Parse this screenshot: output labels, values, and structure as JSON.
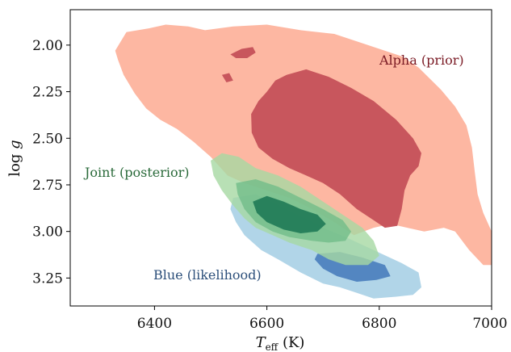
{
  "chart_data": {
    "type": "contour",
    "xlabel_main": "T",
    "xlabel_sub": "eff",
    "xlabel_unit": " (K)",
    "ylabel_main": "log ",
    "ylabel_italic": "g",
    "xlim": [
      6250,
      7000
    ],
    "ylim": [
      3.4,
      1.81
    ],
    "x_ticks": [
      6400,
      6600,
      6800,
      7000
    ],
    "y_ticks": [
      2.0,
      2.25,
      2.5,
      2.75,
      3.0,
      3.25
    ],
    "x_tick_labels": [
      "6400",
      "6600",
      "6800",
      "7000"
    ],
    "y_tick_labels": [
      "2.00",
      "2.25",
      "2.50",
      "2.75",
      "3.00",
      "3.25"
    ],
    "grid": false,
    "annotations": [
      {
        "key": "alpha",
        "text": "Alpha (prior)",
        "color": "#7a1a24"
      },
      {
        "key": "joint",
        "text": "Joint (posterior)",
        "color": "#2a6a3a"
      },
      {
        "key": "blue",
        "text": "Blue (likelihood)",
        "color": "#2c4f7a"
      }
    ],
    "series": [
      {
        "key": "alpha",
        "levels": [
          {
            "level": "outer",
            "color": "#fdb7a2",
            "opacity": 1.0,
            "polygons": [
              [
                [
                  6330,
                  2.03
                ],
                [
                  6350,
                  1.93
                ],
                [
                  6390,
                  1.91
                ],
                [
                  6420,
                  1.89
                ],
                [
                  6460,
                  1.9
                ],
                [
                  6490,
                  1.92
                ],
                [
                  6540,
                  1.9
                ],
                [
                  6600,
                  1.89
                ],
                [
                  6660,
                  1.92
                ],
                [
                  6720,
                  1.94
                ],
                [
                  6760,
                  1.98
                ],
                [
                  6800,
                  2.02
                ],
                [
                  6840,
                  2.06
                ],
                [
                  6870,
                  2.12
                ],
                [
                  6890,
                  2.18
                ],
                [
                  6910,
                  2.24
                ],
                [
                  6935,
                  2.33
                ],
                [
                  6955,
                  2.43
                ],
                [
                  6965,
                  2.55
                ],
                [
                  6970,
                  2.68
                ],
                [
                  6975,
                  2.8
                ],
                [
                  6985,
                  2.9
                ],
                [
                  7000,
                  3.0
                ],
                [
                  7000,
                  3.18
                ],
                [
                  6985,
                  3.18
                ],
                [
                  6960,
                  3.1
                ],
                [
                  6935,
                  3.0
                ],
                [
                  6915,
                  2.98
                ],
                [
                  6880,
                  3.0
                ],
                [
                  6850,
                  2.98
                ],
                [
                  6820,
                  2.96
                ],
                [
                  6790,
                  2.98
                ],
                [
                  6755,
                  3.02
                ],
                [
                  6720,
                  2.95
                ],
                [
                  6680,
                  2.88
                ],
                [
                  6640,
                  2.82
                ],
                [
                  6600,
                  2.78
                ],
                [
                  6560,
                  2.74
                ],
                [
                  6530,
                  2.7
                ],
                [
                  6500,
                  2.6
                ],
                [
                  6470,
                  2.52
                ],
                [
                  6440,
                  2.45
                ],
                [
                  6410,
                  2.4
                ],
                [
                  6385,
                  2.34
                ],
                [
                  6365,
                  2.26
                ],
                [
                  6345,
                  2.16
                ],
                [
                  6335,
                  2.08
                ]
              ]
            ]
          },
          {
            "level": "inner",
            "color": "#c8565d",
            "opacity": 1.0,
            "polygons": [
              [
                [
                  6635,
                  2.16
                ],
                [
                  6670,
                  2.13
                ],
                [
                  6710,
                  2.17
                ],
                [
                  6750,
                  2.23
                ],
                [
                  6790,
                  2.3
                ],
                [
                  6830,
                  2.4
                ],
                [
                  6860,
                  2.5
                ],
                [
                  6875,
                  2.58
                ],
                [
                  6870,
                  2.65
                ],
                [
                  6855,
                  2.7
                ],
                [
                  6845,
                  2.78
                ],
                [
                  6840,
                  2.88
                ],
                [
                  6832,
                  2.97
                ],
                [
                  6810,
                  2.98
                ],
                [
                  6790,
                  2.94
                ],
                [
                  6760,
                  2.88
                ],
                [
                  6730,
                  2.8
                ],
                [
                  6700,
                  2.74
                ],
                [
                  6670,
                  2.7
                ],
                [
                  6640,
                  2.66
                ],
                [
                  6610,
                  2.61
                ],
                [
                  6585,
                  2.55
                ],
                [
                  6573,
                  2.47
                ],
                [
                  6572,
                  2.37
                ],
                [
                  6585,
                  2.3
                ],
                [
                  6600,
                  2.25
                ],
                [
                  6615,
                  2.19
                ]
              ],
              [
                [
                  6535,
                  2.05
                ],
                [
                  6555,
                  2.02
                ],
                [
                  6575,
                  2.01
                ],
                [
                  6580,
                  2.04
                ],
                [
                  6565,
                  2.07
                ],
                [
                  6545,
                  2.07
                ]
              ],
              [
                [
                  6520,
                  2.16
                ],
                [
                  6533,
                  2.15
                ],
                [
                  6540,
                  2.19
                ],
                [
                  6528,
                  2.2
                ]
              ]
            ]
          }
        ]
      },
      {
        "key": "blue",
        "levels": [
          {
            "level": "outer",
            "color": "#a9d0e6",
            "opacity": 0.9,
            "polygons": [
              [
                [
                  6540,
                  2.82
                ],
                [
                  6580,
                  2.8
                ],
                [
                  6620,
                  2.86
                ],
                [
                  6660,
                  2.92
                ],
                [
                  6700,
                  2.98
                ],
                [
                  6740,
                  3.03
                ],
                [
                  6790,
                  3.1
                ],
                [
                  6840,
                  3.17
                ],
                [
                  6870,
                  3.22
                ],
                [
                  6875,
                  3.3
                ],
                [
                  6860,
                  3.34
                ],
                [
                  6830,
                  3.35
                ],
                [
                  6790,
                  3.36
                ],
                [
                  6760,
                  3.33
                ],
                [
                  6730,
                  3.3
                ],
                [
                  6700,
                  3.28
                ],
                [
                  6660,
                  3.22
                ],
                [
                  6620,
                  3.15
                ],
                [
                  6590,
                  3.1
                ],
                [
                  6560,
                  3.02
                ],
                [
                  6545,
                  2.95
                ],
                [
                  6535,
                  2.88
                ]
              ]
            ]
          },
          {
            "level": "inner",
            "color": "#4e82bf",
            "opacity": 0.95,
            "polygons": [
              [
                [
                  6690,
                  3.12
                ],
                [
                  6730,
                  3.11
                ],
                [
                  6770,
                  3.14
                ],
                [
                  6810,
                  3.18
                ],
                [
                  6820,
                  3.24
                ],
                [
                  6795,
                  3.26
                ],
                [
                  6760,
                  3.27
                ],
                [
                  6725,
                  3.24
                ],
                [
                  6700,
                  3.2
                ],
                [
                  6685,
                  3.15
                ]
              ]
            ]
          }
        ]
      },
      {
        "key": "joint",
        "levels": [
          {
            "level": "outer",
            "color": "#a6d8a2",
            "opacity": 0.8,
            "polygons": [
              [
                [
                  6500,
                  2.62
                ],
                [
                  6520,
                  2.58
                ],
                [
                  6550,
                  2.6
                ],
                [
                  6580,
                  2.66
                ],
                [
                  6620,
                  2.7
                ],
                [
                  6660,
                  2.76
                ],
                [
                  6700,
                  2.84
                ],
                [
                  6740,
                  2.92
                ],
                [
                  6770,
                  2.98
                ],
                [
                  6790,
                  3.05
                ],
                [
                  6800,
                  3.13
                ],
                [
                  6780,
                  3.18
                ],
                [
                  6740,
                  3.18
                ],
                [
                  6710,
                  3.15
                ],
                [
                  6680,
                  3.1
                ],
                [
                  6640,
                  3.06
                ],
                [
                  6610,
                  3.02
                ],
                [
                  6580,
                  2.98
                ],
                [
                  6560,
                  2.93
                ],
                [
                  6540,
                  2.86
                ],
                [
                  6520,
                  2.78
                ],
                [
                  6505,
                  2.7
                ]
              ]
            ]
          },
          {
            "level": "mid",
            "color": "#6dbb87",
            "opacity": 0.75,
            "polygons": [
              [
                [
                  6545,
                  2.74
                ],
                [
                  6580,
                  2.72
                ],
                [
                  6620,
                  2.76
                ],
                [
                  6660,
                  2.82
                ],
                [
                  6700,
                  2.88
                ],
                [
                  6735,
                  2.94
                ],
                [
                  6750,
                  3.0
                ],
                [
                  6740,
                  3.05
                ],
                [
                  6710,
                  3.06
                ],
                [
                  6680,
                  3.05
                ],
                [
                  6640,
                  3.03
                ],
                [
                  6610,
                  3.0
                ],
                [
                  6580,
                  2.95
                ],
                [
                  6560,
                  2.88
                ],
                [
                  6548,
                  2.8
                ]
              ]
            ]
          },
          {
            "level": "inner",
            "color": "#1f7a57",
            "opacity": 0.9,
            "polygons": [
              [
                [
                  6575,
                  2.84
                ],
                [
                  6600,
                  2.81
                ],
                [
                  6630,
                  2.84
                ],
                [
                  6660,
                  2.88
                ],
                [
                  6690,
                  2.91
                ],
                [
                  6705,
                  2.96
                ],
                [
                  6690,
                  3.0
                ],
                [
                  6660,
                  3.01
                ],
                [
                  6630,
                  2.99
                ],
                [
                  6600,
                  2.95
                ],
                [
                  6582,
                  2.9
                ]
              ]
            ]
          }
        ]
      }
    ]
  }
}
